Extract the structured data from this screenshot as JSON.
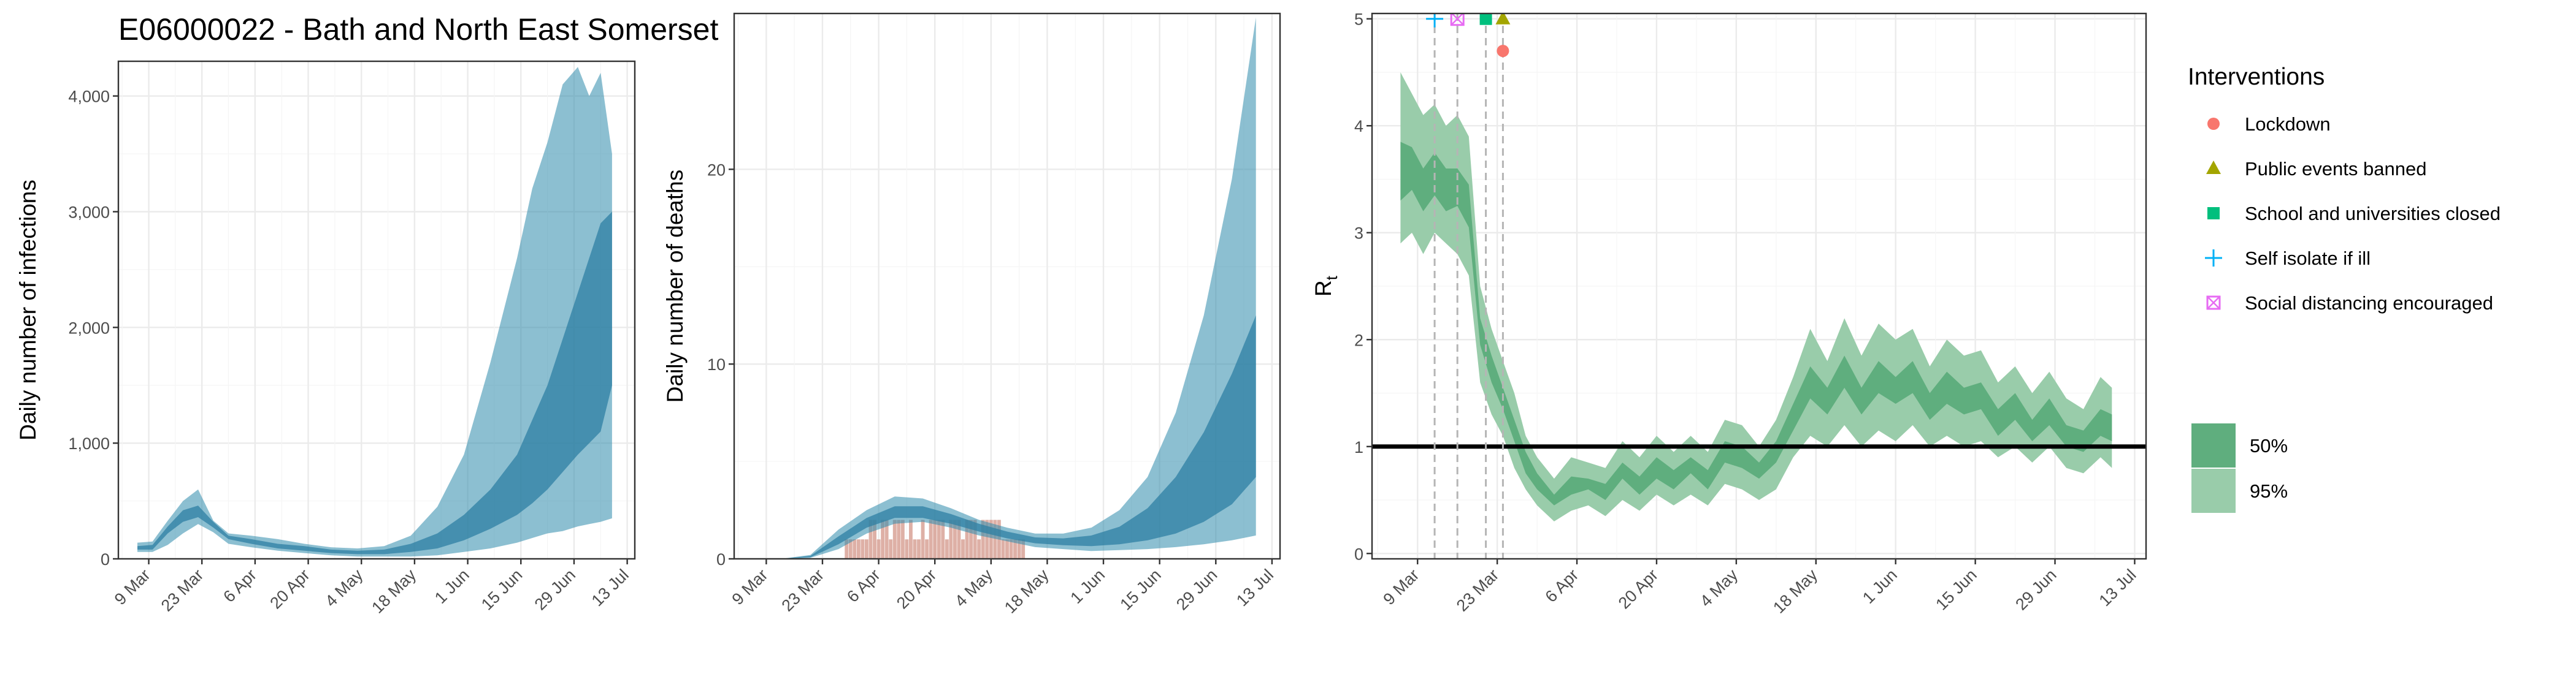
{
  "chart_data": [
    {
      "type": "area",
      "title": "E06000022 - Bath and North East Somerset",
      "xlabel": "",
      "ylabel": "Daily number of infections",
      "x_ticks": [
        "9 Mar",
        "23 Mar",
        "6 Apr",
        "20 Apr",
        "4 May",
        "18 May",
        "1 Jun",
        "15 Jun",
        "29 Jun",
        "13 Jul"
      ],
      "y_ticks": [
        "0",
        "1,000",
        "2,000",
        "3,000",
        "4,000"
      ],
      "xlim": [
        "2020-03-01",
        "2020-07-15"
      ],
      "ylim": [
        0,
        4300
      ],
      "grid": true,
      "series": [
        {
          "band": "95%",
          "color": "#2e8bab",
          "x": [
            "2020-03-06",
            "2020-03-10",
            "2020-03-14",
            "2020-03-18",
            "2020-03-22",
            "2020-03-26",
            "2020-03-30",
            "2020-04-05",
            "2020-04-12",
            "2020-04-19",
            "2020-04-26",
            "2020-05-03",
            "2020-05-10",
            "2020-05-17",
            "2020-05-24",
            "2020-05-31",
            "2020-06-07",
            "2020-06-14",
            "2020-06-18",
            "2020-06-22",
            "2020-06-26",
            "2020-06-30",
            "2020-07-03",
            "2020-07-06",
            "2020-07-09"
          ],
          "lower": [
            60,
            60,
            120,
            220,
            300,
            230,
            130,
            100,
            70,
            50,
            30,
            20,
            20,
            20,
            30,
            60,
            90,
            140,
            180,
            220,
            240,
            280,
            300,
            320,
            350
          ],
          "upper": [
            140,
            150,
            330,
            500,
            600,
            330,
            220,
            200,
            170,
            130,
            100,
            90,
            110,
            200,
            450,
            900,
            1700,
            2600,
            3200,
            3600,
            4100,
            4250,
            4000,
            4200,
            3500
          ]
        },
        {
          "band": "50%",
          "color": "#2e7fa3",
          "x": [
            "2020-03-06",
            "2020-03-10",
            "2020-03-14",
            "2020-03-18",
            "2020-03-22",
            "2020-03-26",
            "2020-03-30",
            "2020-04-05",
            "2020-04-12",
            "2020-04-19",
            "2020-04-26",
            "2020-05-03",
            "2020-05-10",
            "2020-05-17",
            "2020-05-24",
            "2020-05-31",
            "2020-06-07",
            "2020-06-14",
            "2020-06-18",
            "2020-06-22",
            "2020-06-26",
            "2020-06-30",
            "2020-07-03",
            "2020-07-06",
            "2020-07-09"
          ],
          "lower": [
            80,
            80,
            220,
            320,
            360,
            270,
            170,
            130,
            90,
            70,
            50,
            40,
            40,
            60,
            90,
            160,
            260,
            380,
            480,
            600,
            750,
            900,
            1000,
            1100,
            1500
          ],
          "upper": [
            110,
            120,
            280,
            420,
            460,
            320,
            200,
            170,
            130,
            110,
            80,
            70,
            80,
            130,
            220,
            380,
            600,
            900,
            1200,
            1500,
            1900,
            2300,
            2600,
            2900,
            3000
          ]
        }
      ]
    },
    {
      "type": "bar",
      "xlabel": "",
      "ylabel": "Daily number of deaths",
      "x_ticks": [
        "9 Mar",
        "23 Mar",
        "6 Apr",
        "20 Apr",
        "4 May",
        "18 May",
        "1 Jun",
        "15 Jun",
        "29 Jun",
        "13 Jul"
      ],
      "y_ticks": [
        "0",
        "10",
        "20"
      ],
      "xlim": [
        "2020-03-01",
        "2020-07-15"
      ],
      "ylim": [
        0,
        28
      ],
      "grid": true,
      "bars": {
        "color": "#d8a297",
        "x": [
          "2020-03-29",
          "2020-03-30",
          "2020-03-31",
          "2020-04-01",
          "2020-04-02",
          "2020-04-03",
          "2020-04-04",
          "2020-04-05",
          "2020-04-06",
          "2020-04-07",
          "2020-04-08",
          "2020-04-09",
          "2020-04-10",
          "2020-04-11",
          "2020-04-12",
          "2020-04-13",
          "2020-04-14",
          "2020-04-15",
          "2020-04-16",
          "2020-04-17",
          "2020-04-18",
          "2020-04-19",
          "2020-04-20",
          "2020-04-21",
          "2020-04-22",
          "2020-04-23",
          "2020-04-24",
          "2020-04-25",
          "2020-04-26",
          "2020-04-27",
          "2020-04-28",
          "2020-04-29",
          "2020-04-30",
          "2020-05-01",
          "2020-05-02",
          "2020-05-03",
          "2020-05-04",
          "2020-05-05",
          "2020-05-06",
          "2020-05-07",
          "2020-05-08",
          "2020-05-09",
          "2020-05-10",
          "2020-05-11",
          "2020-05-12"
        ],
        "values": [
          1,
          1,
          1,
          1,
          1,
          1,
          2,
          2,
          1,
          2,
          2,
          1,
          2,
          2,
          2,
          1,
          2,
          1,
          1,
          2,
          1,
          2,
          2,
          2,
          2,
          1,
          2,
          2,
          2,
          1,
          2,
          2,
          2,
          1,
          2,
          2,
          2,
          2,
          2,
          1,
          1,
          1,
          1,
          1,
          1
        ]
      },
      "series": [
        {
          "band": "95%",
          "color": "#2e8bab",
          "x": [
            "2020-03-06",
            "2020-03-13",
            "2020-03-20",
            "2020-03-27",
            "2020-04-03",
            "2020-04-10",
            "2020-04-17",
            "2020-04-24",
            "2020-05-01",
            "2020-05-08",
            "2020-05-15",
            "2020-05-22",
            "2020-05-29",
            "2020-06-05",
            "2020-06-12",
            "2020-06-19",
            "2020-06-26",
            "2020-07-03",
            "2020-07-09"
          ],
          "lower": [
            0,
            0,
            0.05,
            0.5,
            1.3,
            1.8,
            1.9,
            1.6,
            1.2,
            0.9,
            0.6,
            0.5,
            0.4,
            0.45,
            0.5,
            0.6,
            0.75,
            0.95,
            1.2
          ],
          "upper": [
            0,
            0.01,
            0.2,
            1.5,
            2.5,
            3.2,
            3.1,
            2.6,
            2.0,
            1.6,
            1.3,
            1.3,
            1.6,
            2.5,
            4.2,
            7.5,
            12.5,
            19.5,
            27.8
          ]
        },
        {
          "band": "50%",
          "color": "#2e7fa3",
          "x": [
            "2020-03-06",
            "2020-03-13",
            "2020-03-20",
            "2020-03-27",
            "2020-04-03",
            "2020-04-10",
            "2020-04-17",
            "2020-04-24",
            "2020-05-01",
            "2020-05-08",
            "2020-05-15",
            "2020-05-22",
            "2020-05-29",
            "2020-06-05",
            "2020-06-12",
            "2020-06-19",
            "2020-06-26",
            "2020-07-03",
            "2020-07-09"
          ],
          "lower": [
            0,
            0,
            0.08,
            0.75,
            1.6,
            2.1,
            2.1,
            1.8,
            1.4,
            1.05,
            0.8,
            0.7,
            0.65,
            0.75,
            0.95,
            1.3,
            1.9,
            2.8,
            4.2
          ],
          "upper": [
            0,
            0.01,
            0.15,
            1.15,
            2.1,
            2.7,
            2.7,
            2.3,
            1.8,
            1.4,
            1.1,
            1.05,
            1.2,
            1.65,
            2.6,
            4.2,
            6.5,
            9.5,
            12.5
          ]
        }
      ]
    },
    {
      "type": "area",
      "xlabel": "",
      "ylabel": "Rt",
      "x_ticks": [
        "9 Mar",
        "23 Mar",
        "6 Apr",
        "20 Apr",
        "4 May",
        "18 May",
        "1 Jun",
        "15 Jun",
        "29 Jun",
        "13 Jul"
      ],
      "y_ticks": [
        "0",
        "1",
        "2",
        "3",
        "4",
        "5"
      ],
      "xlim": [
        "2020-03-01",
        "2020-07-15"
      ],
      "ylim": [
        -0.05,
        5.05
      ],
      "grid": true,
      "reference_line": 1,
      "series": [
        {
          "band": "95%",
          "color": "#99ccaa",
          "x": [
            "2020-03-06",
            "2020-03-08",
            "2020-03-10",
            "2020-03-12",
            "2020-03-14",
            "2020-03-16",
            "2020-03-18",
            "2020-03-20",
            "2020-03-22",
            "2020-03-24",
            "2020-03-26",
            "2020-03-28",
            "2020-03-30",
            "2020-04-02",
            "2020-04-05",
            "2020-04-08",
            "2020-04-11",
            "2020-04-14",
            "2020-04-17",
            "2020-04-20",
            "2020-04-23",
            "2020-04-26",
            "2020-04-29",
            "2020-05-02",
            "2020-05-05",
            "2020-05-08",
            "2020-05-11",
            "2020-05-14",
            "2020-05-17",
            "2020-05-20",
            "2020-05-23",
            "2020-05-26",
            "2020-05-29",
            "2020-06-01",
            "2020-06-04",
            "2020-06-07",
            "2020-06-10",
            "2020-06-13",
            "2020-06-16",
            "2020-06-19",
            "2020-06-22",
            "2020-06-25",
            "2020-06-28",
            "2020-07-01",
            "2020-07-04",
            "2020-07-07",
            "2020-07-09"
          ],
          "lower": [
            2.9,
            3.0,
            2.8,
            3.0,
            2.9,
            2.8,
            2.6,
            1.6,
            1.3,
            1.1,
            0.8,
            0.6,
            0.45,
            0.3,
            0.4,
            0.45,
            0.35,
            0.5,
            0.4,
            0.55,
            0.45,
            0.55,
            0.45,
            0.65,
            0.6,
            0.5,
            0.6,
            0.9,
            1.1,
            1.0,
            1.2,
            1.0,
            1.15,
            1.05,
            1.2,
            1.0,
            1.1,
            1.0,
            1.05,
            0.9,
            1.0,
            0.85,
            1.0,
            0.8,
            0.75,
            0.9,
            0.8
          ],
          "upper": [
            4.5,
            4.3,
            4.1,
            4.2,
            4.0,
            4.1,
            3.9,
            2.5,
            2.1,
            1.8,
            1.5,
            1.1,
            0.9,
            0.7,
            0.9,
            0.85,
            0.8,
            1.05,
            0.9,
            1.1,
            0.95,
            1.1,
            0.95,
            1.25,
            1.2,
            1.0,
            1.25,
            1.65,
            2.1,
            1.8,
            2.2,
            1.85,
            2.15,
            2.0,
            2.1,
            1.75,
            2.0,
            1.85,
            1.9,
            1.6,
            1.75,
            1.5,
            1.7,
            1.45,
            1.35,
            1.65,
            1.55
          ]
        },
        {
          "band": "50%",
          "color": "#5fae7e",
          "x": [
            "2020-03-06",
            "2020-03-08",
            "2020-03-10",
            "2020-03-12",
            "2020-03-14",
            "2020-03-16",
            "2020-03-18",
            "2020-03-20",
            "2020-03-22",
            "2020-03-24",
            "2020-03-26",
            "2020-03-28",
            "2020-03-30",
            "2020-04-02",
            "2020-04-05",
            "2020-04-08",
            "2020-04-11",
            "2020-04-14",
            "2020-04-17",
            "2020-04-20",
            "2020-04-23",
            "2020-04-26",
            "2020-04-29",
            "2020-05-02",
            "2020-05-05",
            "2020-05-08",
            "2020-05-11",
            "2020-05-14",
            "2020-05-17",
            "2020-05-20",
            "2020-05-23",
            "2020-05-26",
            "2020-05-29",
            "2020-06-01",
            "2020-06-04",
            "2020-06-07",
            "2020-06-10",
            "2020-06-13",
            "2020-06-16",
            "2020-06-19",
            "2020-06-22",
            "2020-06-25",
            "2020-06-28",
            "2020-07-01",
            "2020-07-04",
            "2020-07-07",
            "2020-07-09"
          ],
          "lower": [
            3.3,
            3.4,
            3.2,
            3.35,
            3.2,
            3.25,
            3.05,
            1.95,
            1.6,
            1.35,
            1.05,
            0.75,
            0.6,
            0.45,
            0.55,
            0.6,
            0.5,
            0.7,
            0.55,
            0.7,
            0.6,
            0.75,
            0.6,
            0.85,
            0.8,
            0.7,
            0.85,
            1.15,
            1.45,
            1.3,
            1.55,
            1.3,
            1.5,
            1.4,
            1.5,
            1.25,
            1.4,
            1.3,
            1.35,
            1.1,
            1.25,
            1.05,
            1.2,
            1.0,
            0.95,
            1.1,
            1.05
          ],
          "upper": [
            3.85,
            3.8,
            3.6,
            3.75,
            3.6,
            3.6,
            3.45,
            2.2,
            1.85,
            1.55,
            1.25,
            0.95,
            0.75,
            0.55,
            0.72,
            0.7,
            0.65,
            0.85,
            0.72,
            0.9,
            0.78,
            0.9,
            0.78,
            1.05,
            1.0,
            0.85,
            1.05,
            1.4,
            1.75,
            1.55,
            1.85,
            1.55,
            1.8,
            1.65,
            1.8,
            1.5,
            1.7,
            1.55,
            1.6,
            1.35,
            1.5,
            1.25,
            1.45,
            1.2,
            1.15,
            1.35,
            1.3
          ]
        }
      ],
      "interventions": [
        {
          "label": "Lockdown",
          "date": "2020-03-24",
          "y": 4.7,
          "color": "#f8766d",
          "shape": "circle"
        },
        {
          "label": "Public events banned",
          "date": "2020-03-24",
          "y": 5.0,
          "color": "#a3a500",
          "shape": "triangle"
        },
        {
          "label": "School and universities closed",
          "date": "2020-03-21",
          "y": 5.0,
          "color": "#00bf7d",
          "shape": "square"
        },
        {
          "label": "Self isolate if ill",
          "date": "2020-03-12",
          "y": 5.0,
          "color": "#00b0f6",
          "shape": "plus"
        },
        {
          "label": "Social distancing encouraged",
          "date": "2020-03-16",
          "y": 5.0,
          "color": "#e76bf3",
          "shape": "square-x"
        }
      ]
    }
  ],
  "legend": {
    "interventions_title": "Interventions",
    "interventions": [
      {
        "label": "Lockdown",
        "color": "#f8766d",
        "shape": "circle"
      },
      {
        "label": "Public events banned",
        "color": "#a3a500",
        "shape": "triangle"
      },
      {
        "label": "School and universities closed",
        "color": "#00bf7d",
        "shape": "square"
      },
      {
        "label": "Self isolate if ill",
        "color": "#00b0f6",
        "shape": "plus"
      },
      {
        "label": "Social distancing encouraged",
        "color": "#e76bf3",
        "shape": "square-x"
      }
    ],
    "bands": [
      {
        "label": "50%",
        "color": "#5fae7e"
      },
      {
        "label": "95%",
        "color": "#99ccaa"
      }
    ]
  }
}
